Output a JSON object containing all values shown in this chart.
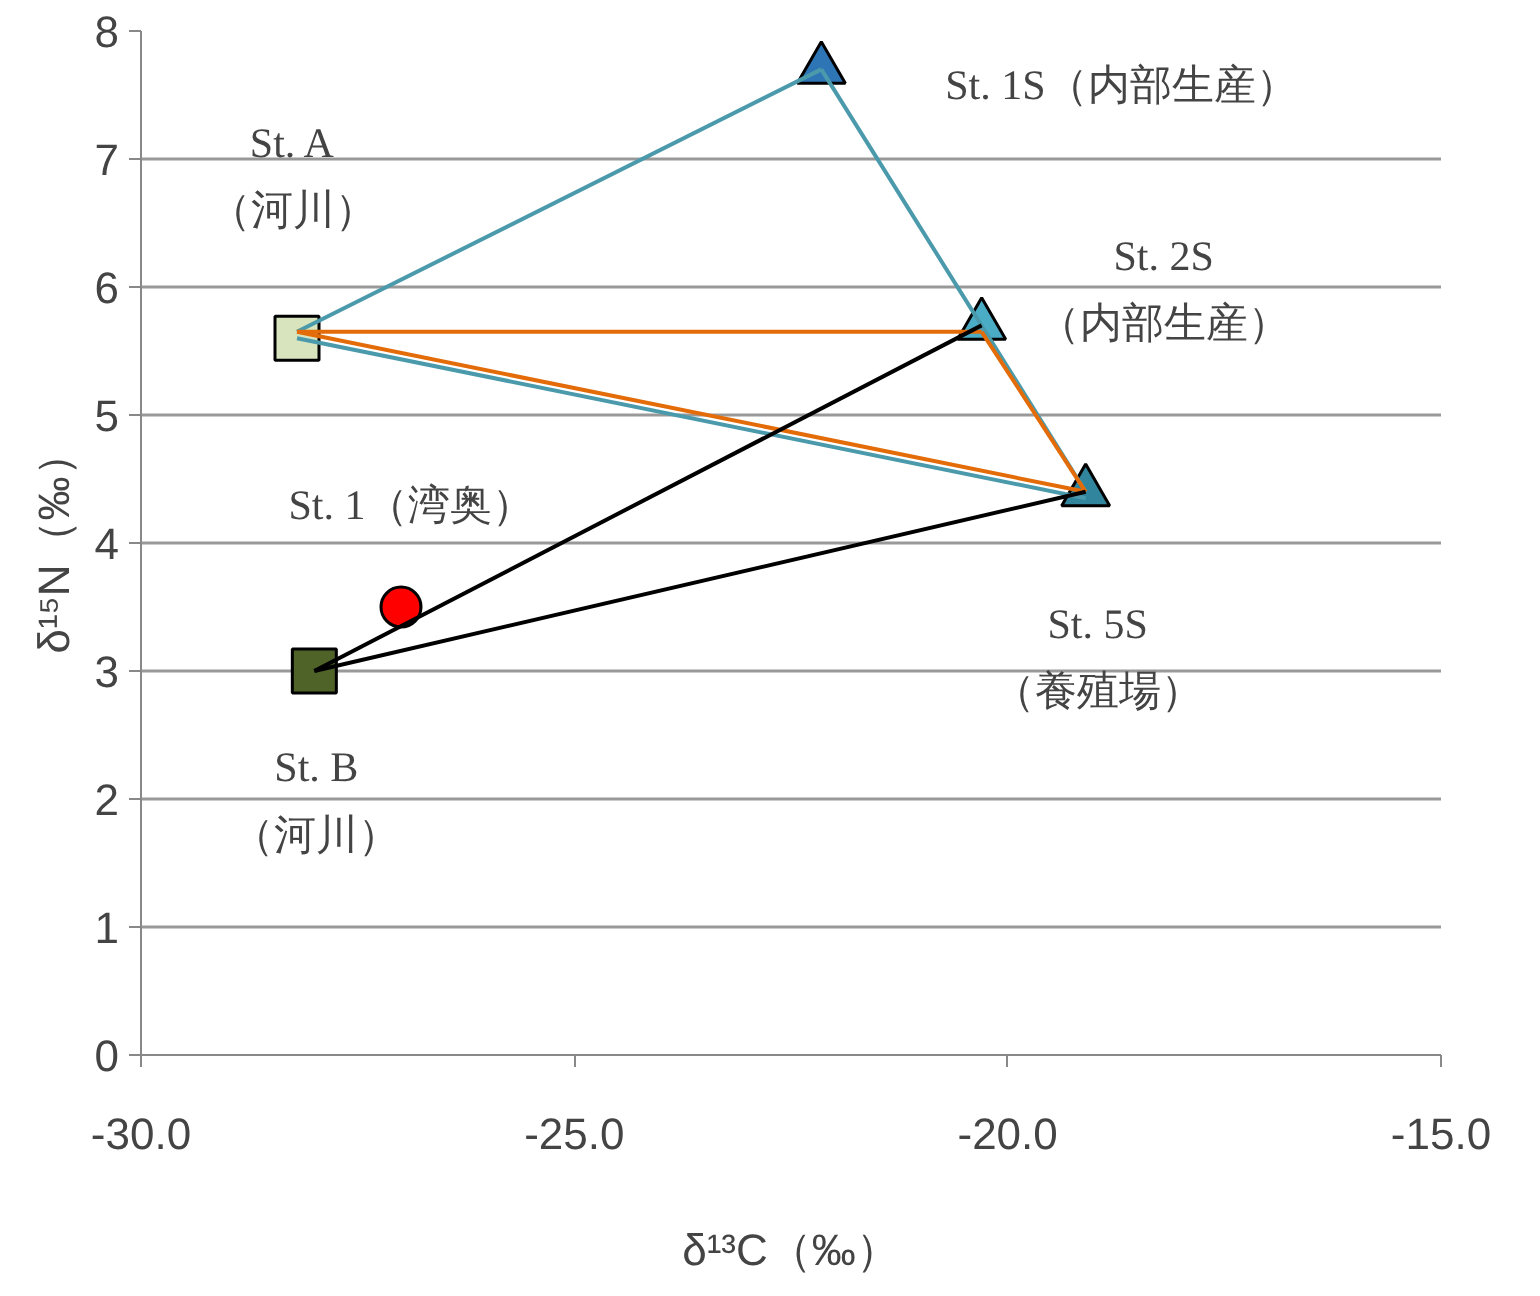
{
  "chart_data": {
    "type": "scatter",
    "xlabel": "δ¹³C（‰）",
    "ylabel": "δ¹⁵N（‰）",
    "xlim": [
      -30,
      -15
    ],
    "xticks": [
      {
        "value": -30,
        "label": "-30.0"
      },
      {
        "value": -25,
        "label": "-25.0"
      },
      {
        "value": -20,
        "label": "-20.0"
      },
      {
        "value": -15,
        "label": "-15.0"
      }
    ],
    "ylim": [
      0,
      8
    ],
    "yticks": [
      0,
      1,
      2,
      3,
      4,
      5,
      6,
      7,
      8
    ],
    "grid": "y",
    "series": [
      {
        "type": "line",
        "color": "#4a9aac",
        "x": [
          -28.2,
          -22.15
        ],
        "values": [
          5.65,
          7.7
        ]
      },
      {
        "type": "line",
        "color": "#4a9aac",
        "x": [
          -22.15,
          -19.1
        ],
        "values": [
          7.7,
          4.4
        ]
      },
      {
        "type": "line",
        "color": "#4a9aac",
        "x": [
          -28.2,
          -19.1
        ],
        "values": [
          5.6,
          4.35
        ]
      },
      {
        "type": "line",
        "color": "#e36c09",
        "x": [
          -28.2,
          -20.3
        ],
        "values": [
          5.65,
          5.65
        ]
      },
      {
        "type": "line",
        "color": "#e36c09",
        "x": [
          -20.3,
          -19.1
        ],
        "values": [
          5.65,
          4.4
        ]
      },
      {
        "type": "line",
        "color": "#e36c09",
        "x": [
          -28.2,
          -19.1
        ],
        "values": [
          5.65,
          4.4
        ]
      },
      {
        "type": "line",
        "color": "#000000",
        "x": [
          -28.0,
          -20.3
        ],
        "values": [
          3.0,
          5.7
        ]
      },
      {
        "type": "line",
        "color": "#000000",
        "x": [
          -28.0,
          -19.1
        ],
        "values": [
          3.0,
          4.4
        ]
      },
      {
        "marker": "square",
        "color": "#d7e4bd",
        "x": [
          -28.2
        ],
        "values": [
          5.6
        ]
      },
      {
        "marker": "square",
        "color": "#4f6228",
        "x": [
          -28.0
        ],
        "values": [
          3.0
        ]
      },
      {
        "marker": "circle",
        "color": "#ff0000",
        "x": [
          -27.0
        ],
        "values": [
          3.5
        ]
      },
      {
        "marker": "triangle",
        "color": "#2e75b6",
        "x": [
          -22.15
        ],
        "values": [
          7.7
        ]
      },
      {
        "marker": "triangle",
        "color": "#4bacc6",
        "x": [
          -20.3
        ],
        "values": [
          5.7
        ]
      },
      {
        "marker": "triangle",
        "color": "#31859c",
        "x": [
          -19.1
        ],
        "values": [
          4.4
        ]
      }
    ],
    "annotations": [
      {
        "text": "St. A\n（河川）",
        "x": -28.2,
        "y": 5.6
      },
      {
        "text": "St. 1S（内部生産）",
        "x": -22.15,
        "y": 7.7
      },
      {
        "text": "St. 2S\n（内部生産）",
        "x": -20.3,
        "y": 5.7
      },
      {
        "text": "St. 1（湾奥）",
        "x": -27.0,
        "y": 3.5
      },
      {
        "text": "St. 5S\n（養殖場）",
        "x": -19.1,
        "y": 4.4
      },
      {
        "text": "St. B\n（河川）",
        "x": -28.0,
        "y": 3.0
      }
    ]
  }
}
